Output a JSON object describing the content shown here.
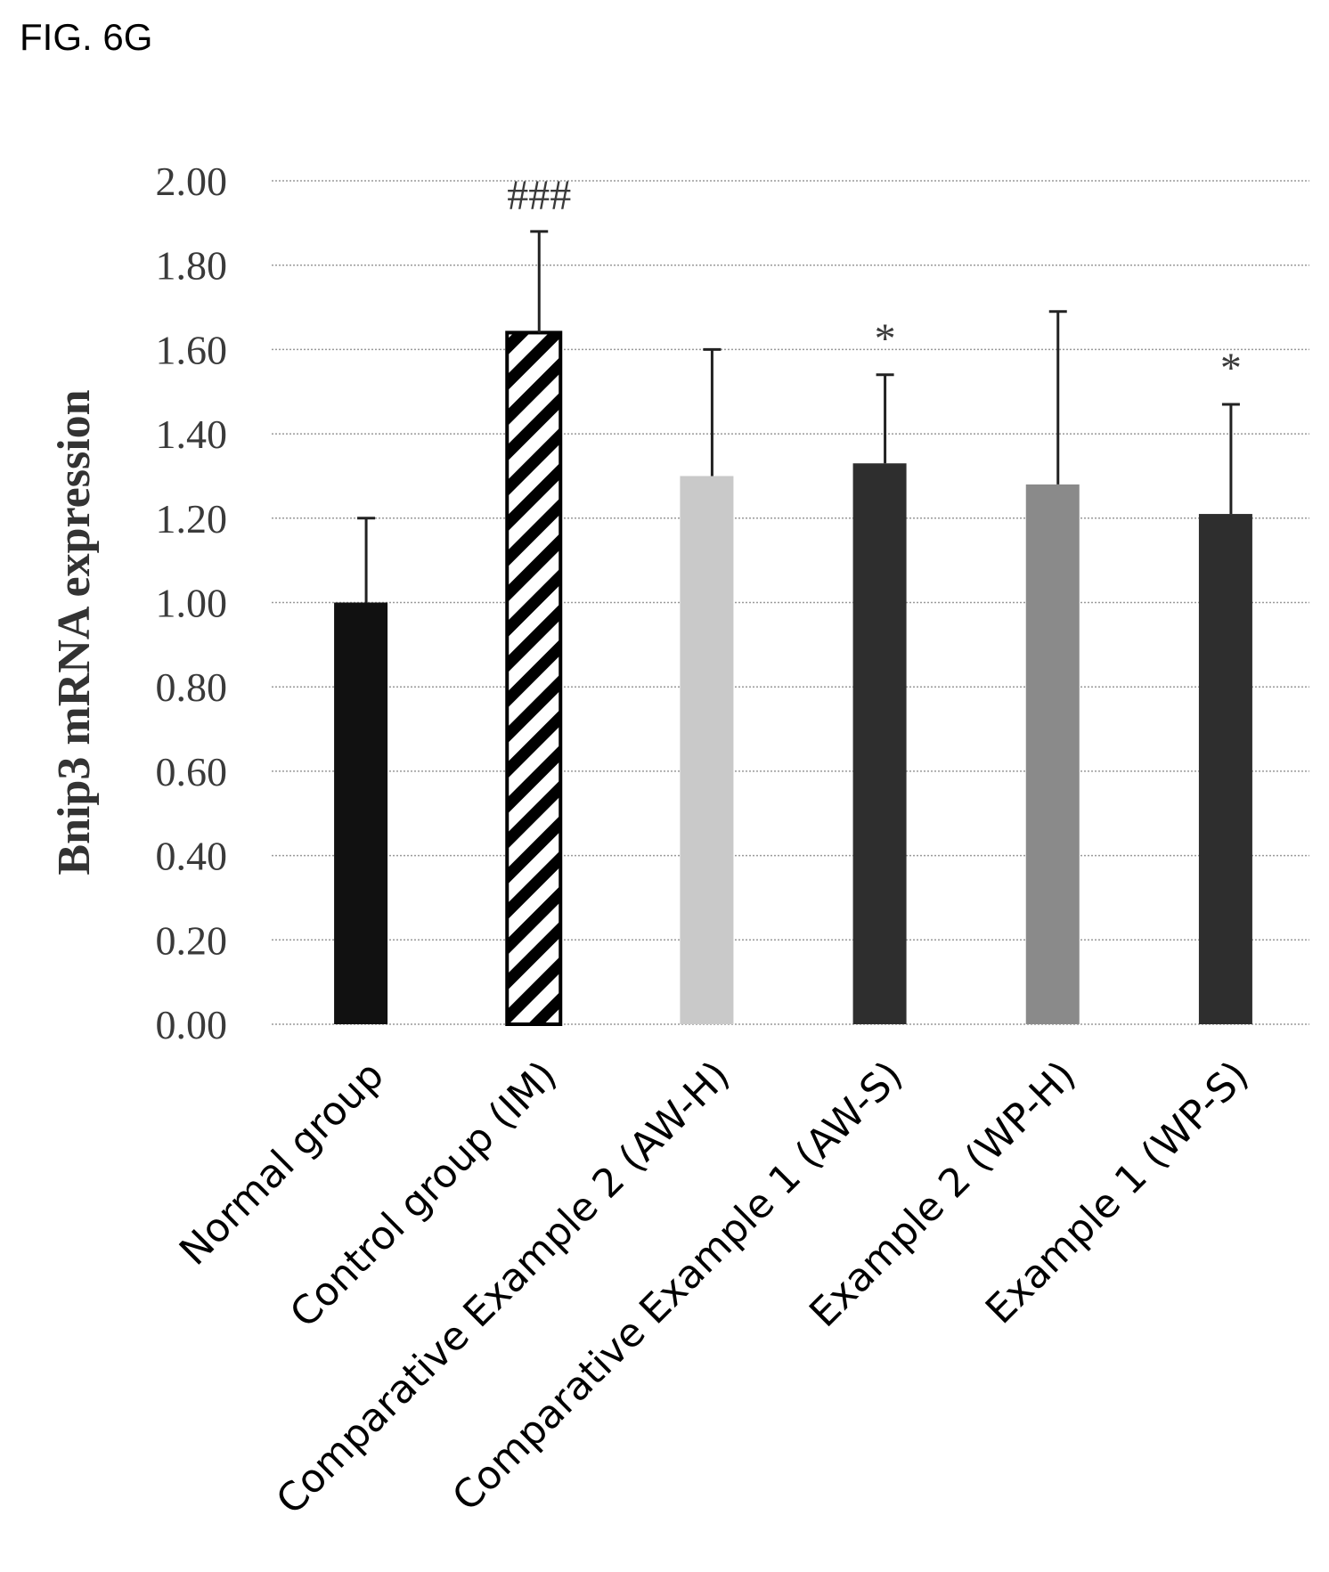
{
  "figure_label": "FIG. 6G",
  "chart_data": {
    "type": "bar",
    "ylabel": "Bnip3 mRNA expression",
    "ylim": [
      0,
      2.0
    ],
    "yticks": [
      "0.00",
      "0.20",
      "0.40",
      "0.60",
      "0.80",
      "1.00",
      "1.20",
      "1.40",
      "1.60",
      "1.80",
      "2.00"
    ],
    "grid": true,
    "categories": [
      "Normal group",
      "Control group (IM)",
      "Comparative Example 2 (AW-H)",
      "Comparative Example 1 (AW-S)",
      "Example 2 (WP-H)",
      "Example 1 (WP-S)"
    ],
    "values": [
      1.0,
      1.64,
      1.3,
      1.33,
      1.28,
      1.21
    ],
    "errors": [
      0.2,
      0.24,
      0.3,
      0.21,
      0.41,
      0.26
    ],
    "annotations": [
      "",
      "###",
      "",
      "*",
      "",
      "*"
    ],
    "fills": [
      "#111111",
      "hatch",
      "#c9c9c9",
      "#2e2e2e",
      "#8a8a8a",
      "#2e2e2e"
    ]
  }
}
